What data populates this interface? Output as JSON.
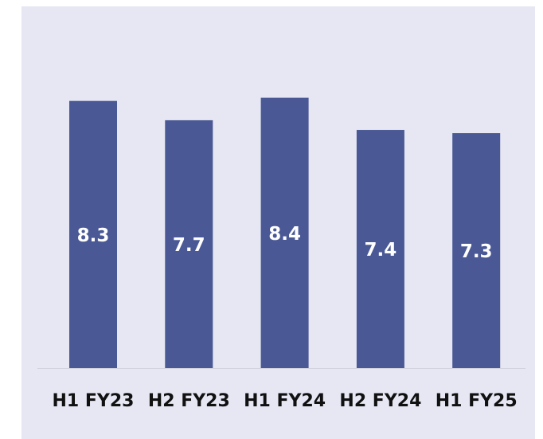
{
  "chart_data": {
    "type": "bar",
    "categories": [
      "H1 FY23",
      "H2 FY23",
      "H1 FY24",
      "H2 FY24",
      "H1 FY25"
    ],
    "values": [
      8.3,
      7.7,
      8.4,
      7.4,
      7.3
    ],
    "color": "#4a5895"
  }
}
